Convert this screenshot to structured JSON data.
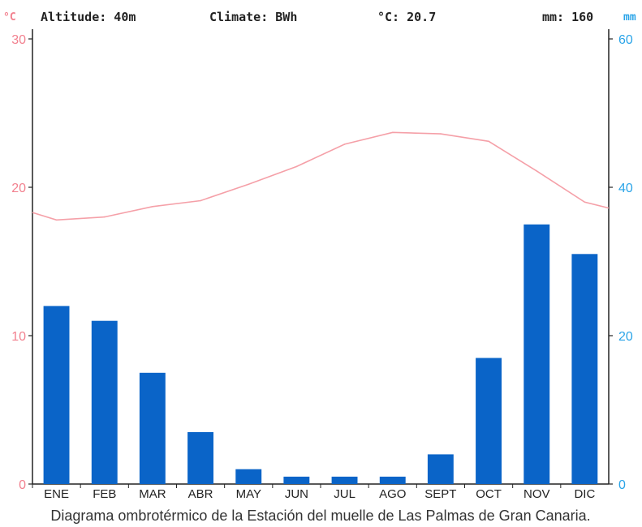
{
  "header": {
    "altitude": "Altitude: 40m",
    "climate": "Climate: BWh",
    "temp": "°C: 20.7",
    "precip": "mm: 160",
    "unit_left": "°C",
    "unit_right": "mm"
  },
  "caption": "Diagrama ombrotérmico de la Estación del muelle de Las Palmas de Gran Canaria.",
  "colors": {
    "bars": "#0a64c8",
    "temp_line": "#f5a0a8",
    "left_axis": "#f2818f",
    "right_axis": "#2aa4e8"
  },
  "chart_data": {
    "type": "bar",
    "categories": [
      "ENE",
      "FEB",
      "MAR",
      "ABR",
      "MAY",
      "JUN",
      "JUL",
      "AGO",
      "SEPT",
      "OCT",
      "NOV",
      "DIC"
    ],
    "series": [
      {
        "type": "bar",
        "axis": "right",
        "values": [
          24,
          22,
          15,
          7,
          2,
          1,
          1,
          1,
          4,
          17,
          35,
          31
        ]
      },
      {
        "type": "line",
        "axis": "left",
        "values": [
          17.8,
          18.0,
          18.7,
          19.1,
          20.2,
          21.4,
          22.9,
          23.7,
          23.6,
          23.1,
          21.1,
          19.0
        ]
      }
    ],
    "y_left": {
      "ylim": [
        0,
        30
      ],
      "ticks": [
        0,
        10,
        20,
        30
      ]
    },
    "y_right": {
      "ylim": [
        0,
        60
      ],
      "ticks": [
        0,
        20,
        40,
        60
      ]
    },
    "line_ends": {
      "start": 18.3,
      "end": 18.6
    }
  }
}
